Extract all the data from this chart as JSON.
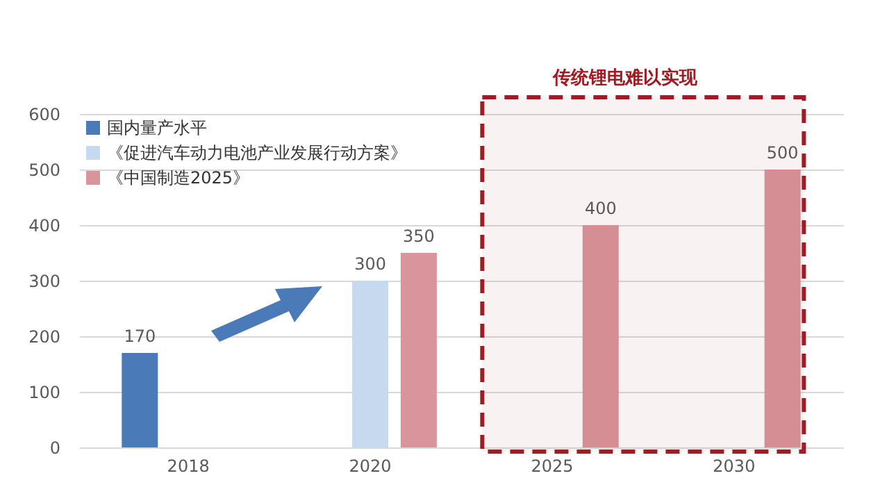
{
  "chart_data": {
    "type": "bar",
    "categories": [
      "2018",
      "2020",
      "2025",
      "2030"
    ],
    "series": [
      {
        "name": "国内量产水平",
        "color": "#4a7ab8",
        "values": [
          170,
          null,
          null,
          null
        ],
        "value_labels": [
          "170",
          null,
          null,
          null
        ]
      },
      {
        "name": "《促进汽车动力电池产业发展行动方案》",
        "color": "#c6d9ef",
        "values": [
          null,
          300,
          null,
          null
        ],
        "value_labels": [
          null,
          "300",
          null,
          null
        ]
      },
      {
        "name": "《中国制造2025》",
        "color": "#d9959b",
        "values": [
          null,
          350,
          400,
          500
        ],
        "value_labels": [
          null,
          "350",
          "400",
          "500"
        ]
      }
    ],
    "ylim": [
      0,
      600
    ],
    "yticks": [
      0,
      100,
      200,
      300,
      400,
      500,
      600
    ],
    "grid": "y",
    "legend": "top left",
    "bands": [
      {
        "axis": "x",
        "from": "2025",
        "to": "2030",
        "label": "传统锂电难以实现",
        "color": "#a01c24"
      }
    ]
  }
}
